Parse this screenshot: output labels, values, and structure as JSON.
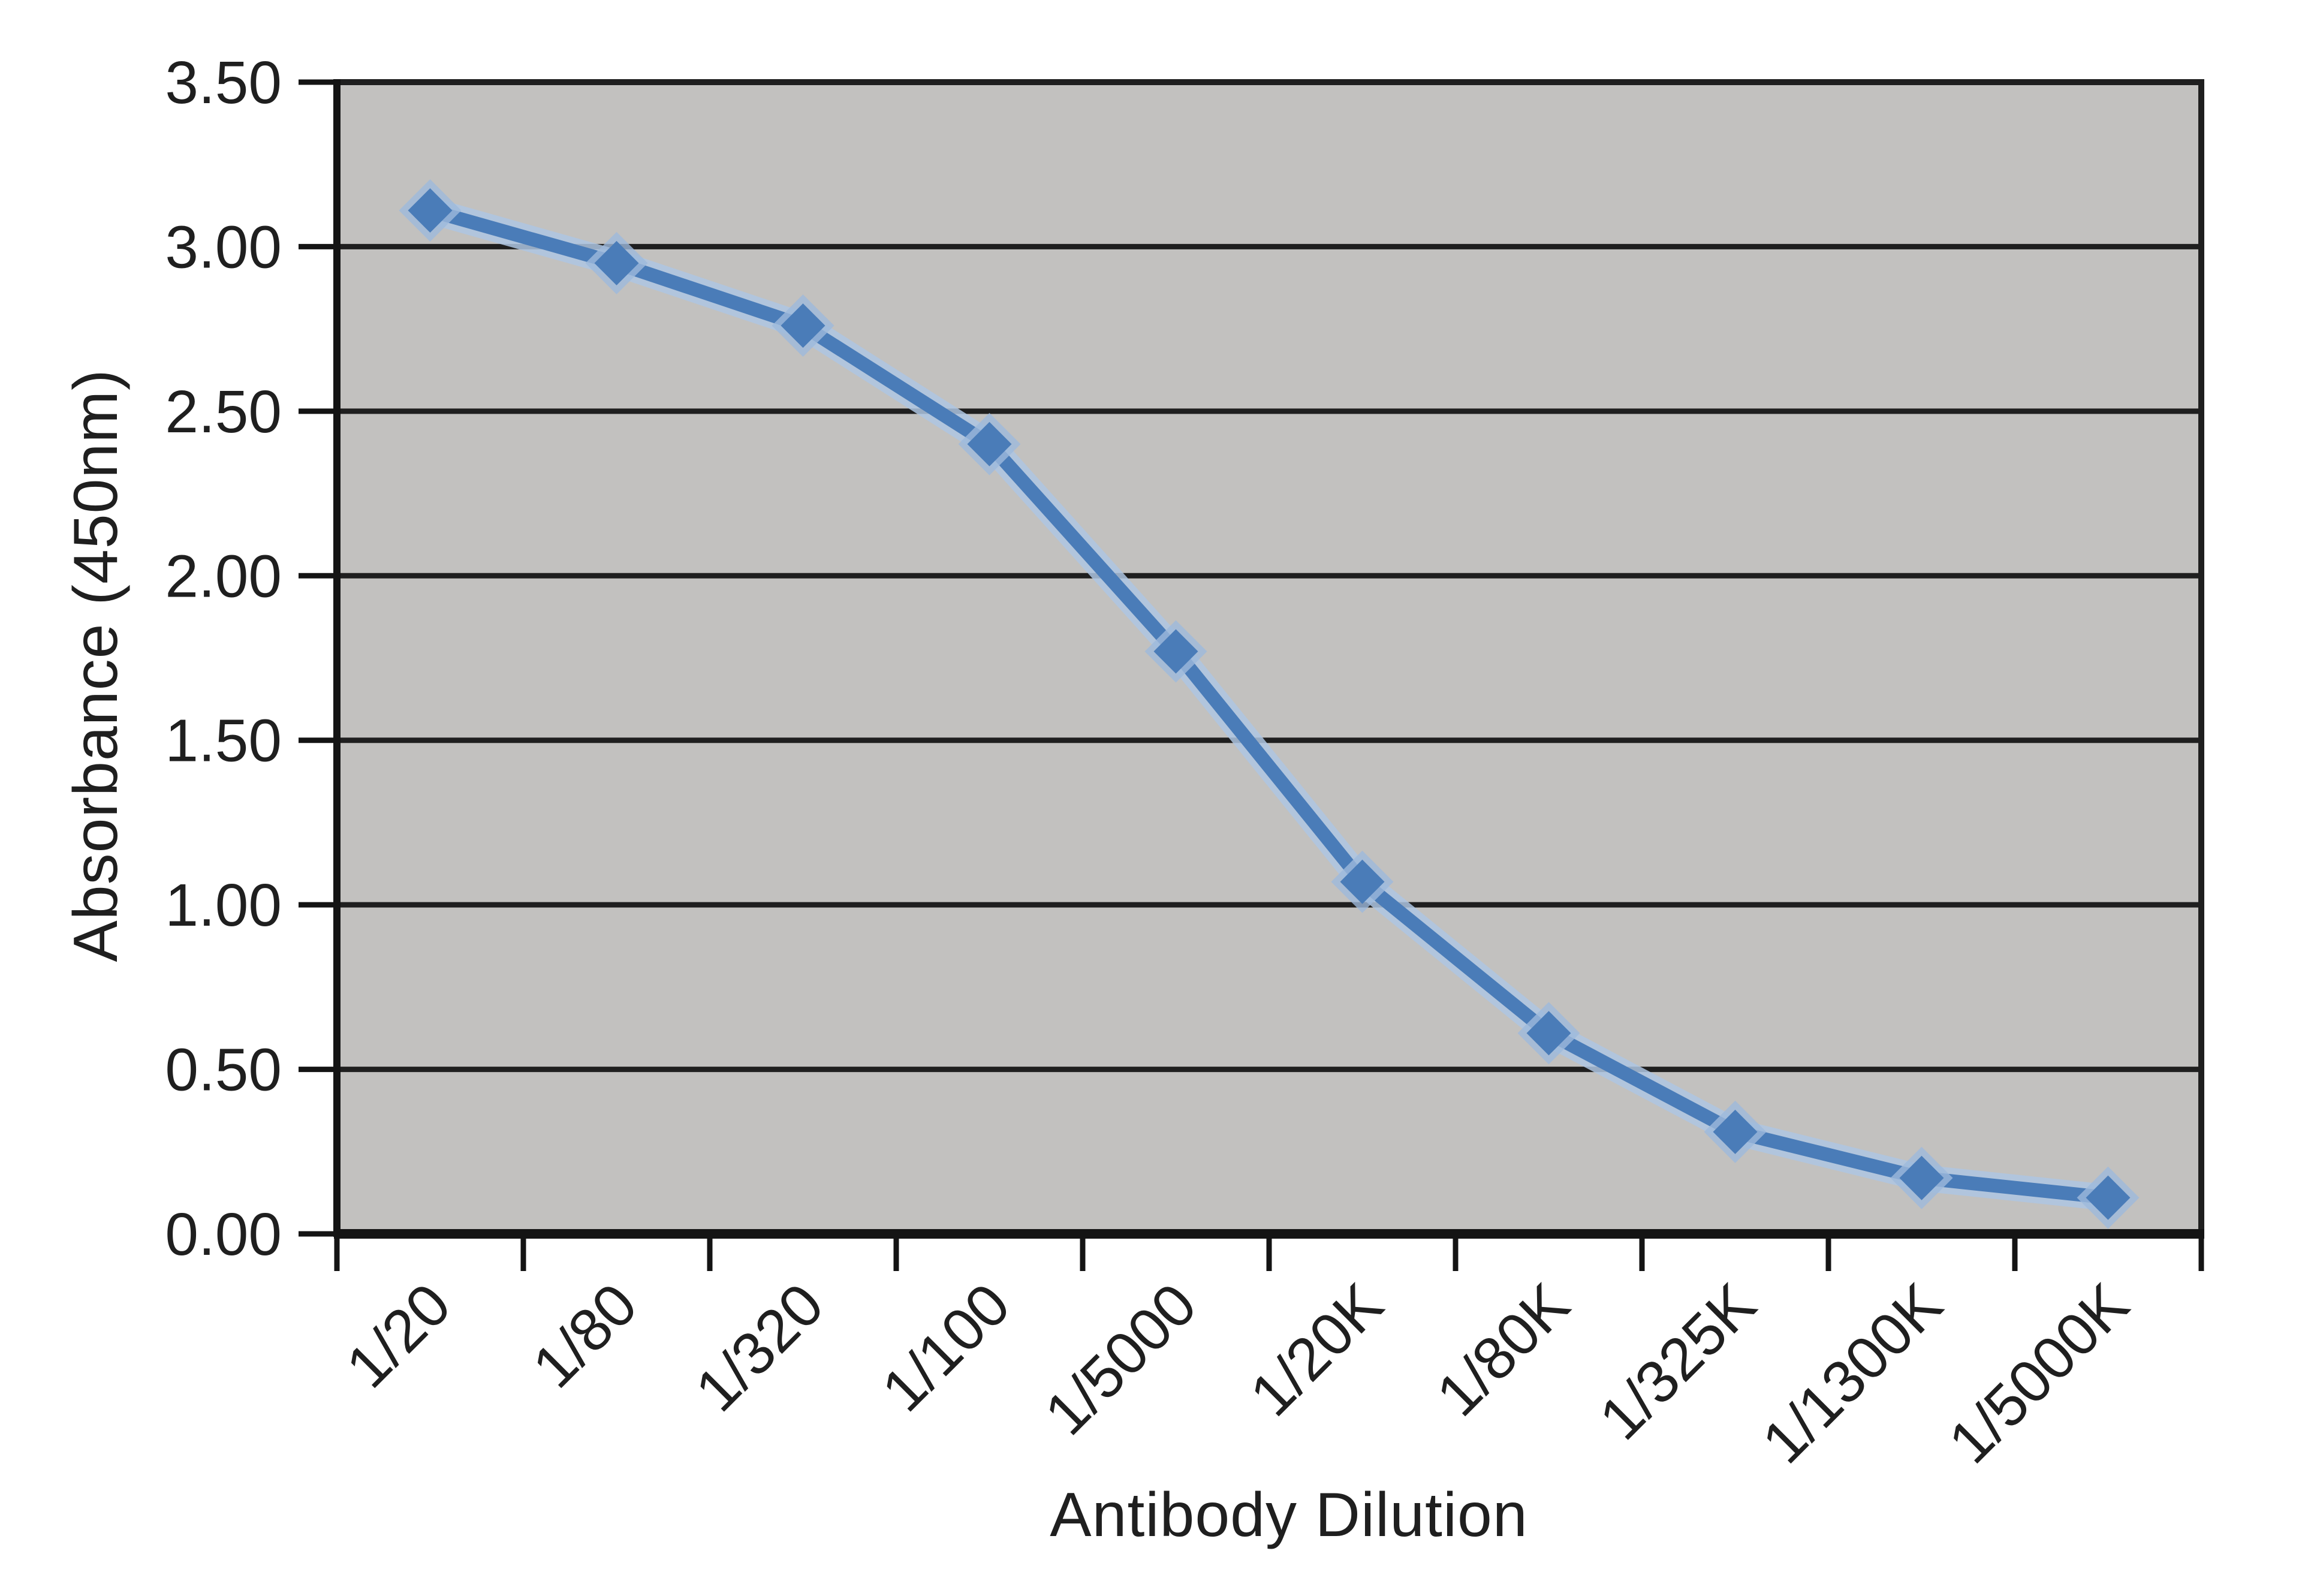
{
  "chart_data": {
    "type": "line",
    "title": "",
    "xlabel": "Antibody Dilution",
    "ylabel": "Absorbance (450nm)",
    "categories": [
      "1/20",
      "1/80",
      "1/320",
      "1/100",
      "1/5000",
      "1/20K",
      "1/80K",
      "1/325K",
      "1/1300K",
      "1/5000K"
    ],
    "series": [
      {
        "name": "Absorbance (450nm)",
        "values": [
          3.11,
          2.95,
          2.76,
          2.4,
          1.77,
          1.07,
          0.61,
          0.31,
          0.17,
          0.11
        ]
      }
    ],
    "ylim": [
      0,
      3.5
    ],
    "ytick_step": 0.5,
    "ytick_labels": [
      "0.00",
      "0.50",
      "1.00",
      "1.50",
      "2.00",
      "2.50",
      "3.00",
      "3.50"
    ],
    "grid": "horizontal",
    "legend": "none",
    "marker": "diamond",
    "colors": {
      "line": "#4a7cb8",
      "line_halo": "#aec6e2",
      "marker": "#4a7cb8",
      "marker_halo": "#9db9dc",
      "plot_bg": "#c2c1bf",
      "grid": "#1f1f1f",
      "axis": "#141414",
      "text": "#1f1f1f",
      "page_bg": "#ffffff"
    }
  }
}
